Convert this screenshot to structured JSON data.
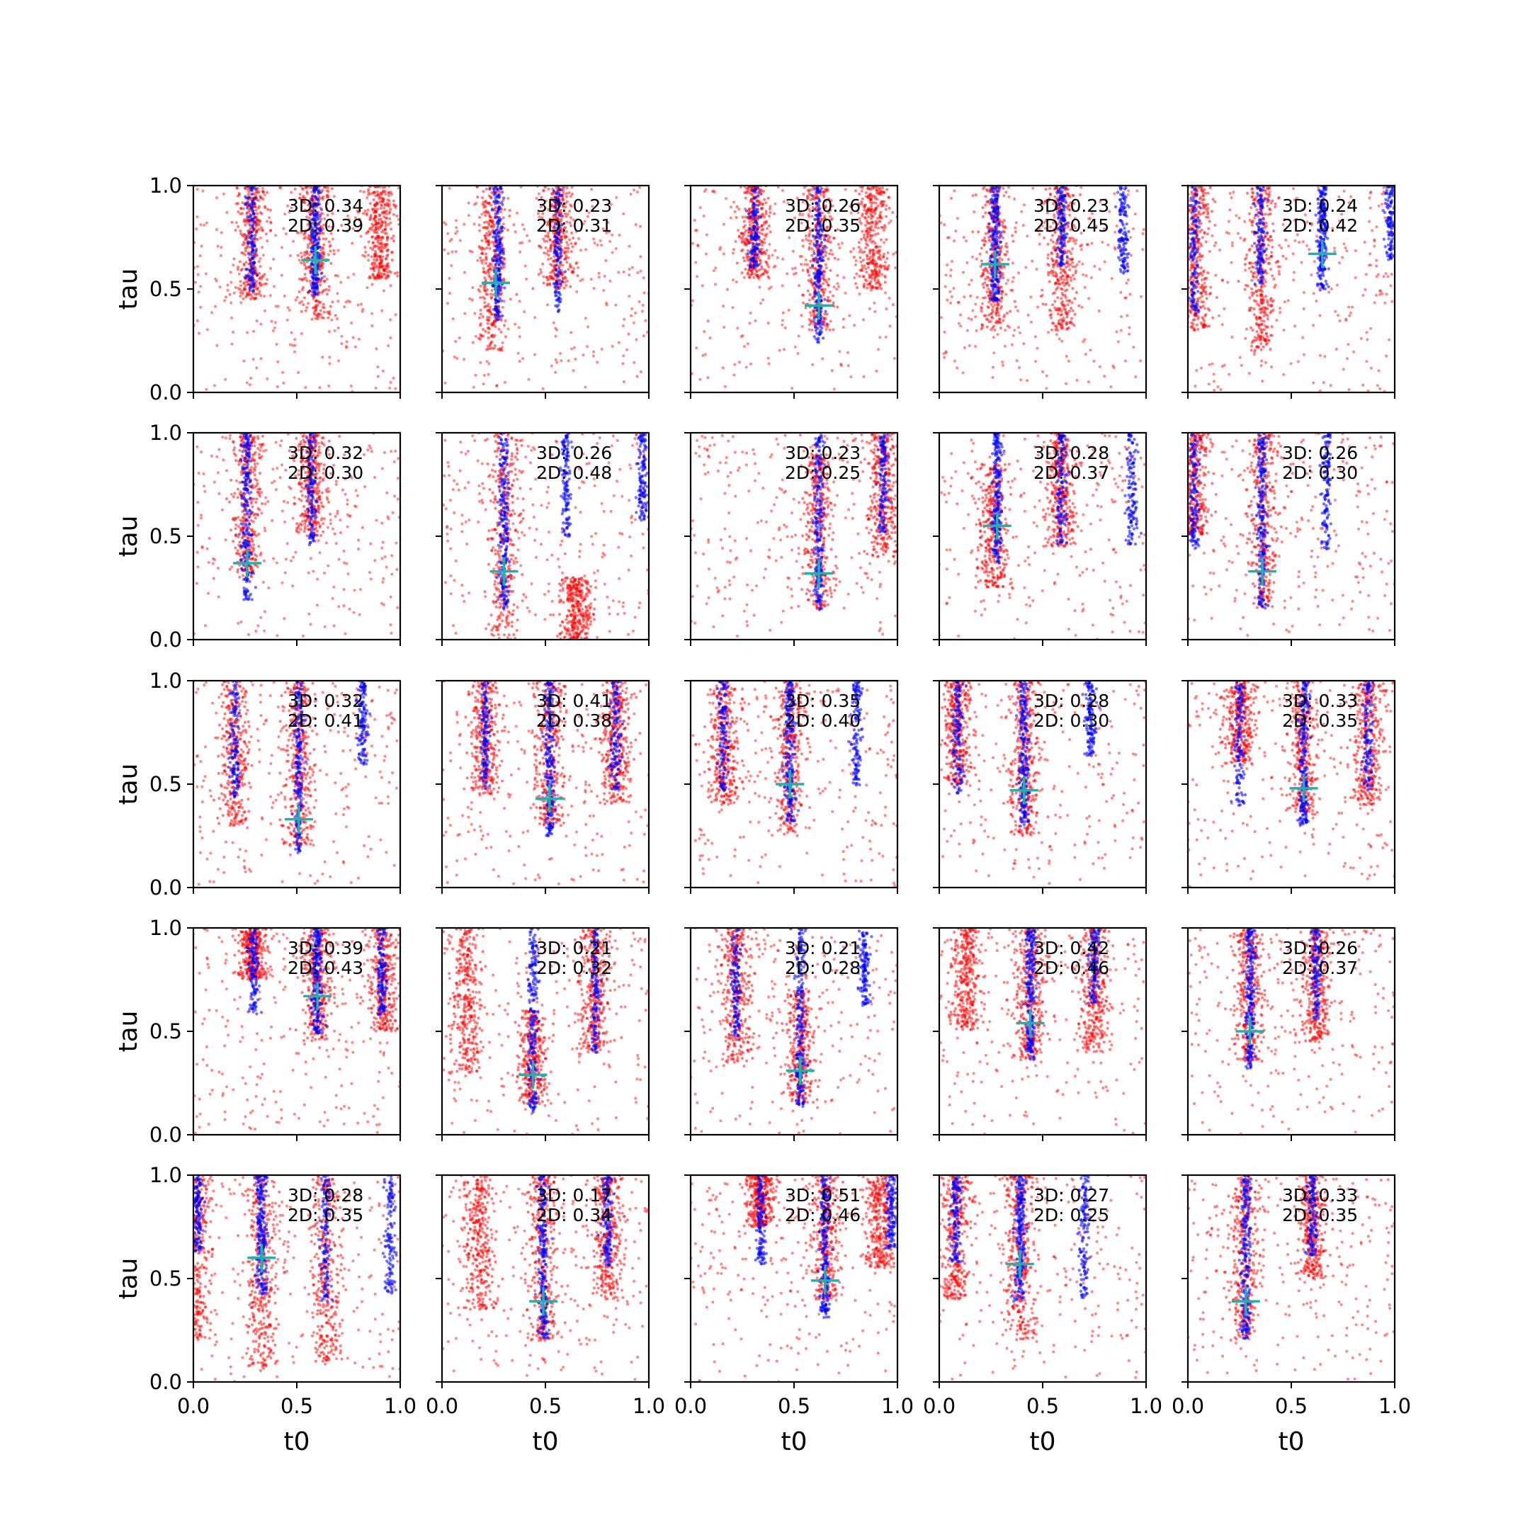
{
  "figure": {
    "rows": 5,
    "cols": 5,
    "xlabel": "t0",
    "ylabel": "tau",
    "xlim": [
      0,
      1
    ],
    "ylim": [
      0,
      1
    ],
    "ticks": [
      0.0,
      0.5,
      1.0
    ],
    "tick_labels": [
      "0.0",
      "0.5",
      "1.0"
    ],
    "colors": {
      "red_points": "#ff0000",
      "blue_points": "#0000ff",
      "marker": "#20b2aa"
    },
    "marker_shape": "plus"
  },
  "chart_data": [
    {
      "type": "scatter",
      "row": 0,
      "col": 0,
      "annotation_3d": "3D: 0.34",
      "annotation_2d": "2D: 0.39",
      "marker": {
        "t0": 0.59,
        "tau": 0.64
      },
      "blue_stripes": [
        0.28,
        0.59
      ],
      "red_clusters": [
        {
          "t0": 0.28,
          "tau_from": 0.45,
          "tau_to": 1.0
        },
        {
          "t0": 0.59,
          "tau_from": 0.35,
          "tau_to": 1.0
        },
        {
          "t0": 0.9,
          "tau_from": 0.55,
          "tau_to": 1.0
        }
      ],
      "xlim": [
        0,
        1
      ],
      "ylim": [
        0,
        1
      ]
    },
    {
      "type": "scatter",
      "row": 0,
      "col": 1,
      "annotation_3d": "3D: 0.23",
      "annotation_2d": "2D: 0.31",
      "marker": {
        "t0": 0.26,
        "tau": 0.53
      },
      "blue_stripes": [
        0.27,
        0.56
      ],
      "red_clusters": [
        {
          "t0": 0.24,
          "tau_from": 0.2,
          "tau_to": 1.0
        },
        {
          "t0": 0.56,
          "tau_from": 0.5,
          "tau_to": 1.0
        }
      ],
      "xlim": [
        0,
        1
      ],
      "ylim": [
        0,
        1
      ]
    },
    {
      "type": "scatter",
      "row": 0,
      "col": 2,
      "annotation_3d": "3D: 0.26",
      "annotation_2d": "2D: 0.35",
      "marker": {
        "t0": 0.62,
        "tau": 0.42
      },
      "blue_stripes": [
        0.31,
        0.62
      ],
      "red_clusters": [
        {
          "t0": 0.31,
          "tau_from": 0.55,
          "tau_to": 1.0
        },
        {
          "t0": 0.62,
          "tau_from": 0.3,
          "tau_to": 1.0
        },
        {
          "t0": 0.88,
          "tau_from": 0.5,
          "tau_to": 1.0
        }
      ],
      "xlim": [
        0,
        1
      ],
      "ylim": [
        0,
        1
      ]
    },
    {
      "type": "scatter",
      "row": 0,
      "col": 3,
      "annotation_3d": "3D: 0.23",
      "annotation_2d": "2D: 0.45",
      "marker": {
        "t0": 0.27,
        "tau": 0.62
      },
      "blue_stripes": [
        0.27,
        0.59,
        0.89
      ],
      "red_clusters": [
        {
          "t0": 0.27,
          "tau_from": 0.3,
          "tau_to": 1.0
        },
        {
          "t0": 0.59,
          "tau_from": 0.3,
          "tau_to": 1.0
        }
      ],
      "xlim": [
        0,
        1
      ],
      "ylim": [
        0,
        1
      ]
    },
    {
      "type": "scatter",
      "row": 0,
      "col": 4,
      "annotation_3d": "3D: 0.24",
      "annotation_2d": "2D: 0.42",
      "marker": {
        "t0": 0.65,
        "tau": 0.67
      },
      "blue_stripes": [
        0.03,
        0.35,
        0.65,
        0.98
      ],
      "red_clusters": [
        {
          "t0": 0.04,
          "tau_from": 0.3,
          "tau_to": 1.0
        },
        {
          "t0": 0.35,
          "tau_from": 0.2,
          "tau_to": 1.0
        }
      ],
      "xlim": [
        0,
        1
      ],
      "ylim": [
        0,
        1
      ]
    },
    {
      "type": "scatter",
      "row": 1,
      "col": 0,
      "annotation_3d": "3D: 0.32",
      "annotation_2d": "2D: 0.30",
      "marker": {
        "t0": 0.26,
        "tau": 0.37
      },
      "blue_stripes": [
        0.26,
        0.57
      ],
      "red_clusters": [
        {
          "t0": 0.26,
          "tau_from": 0.3,
          "tau_to": 1.0
        },
        {
          "t0": 0.57,
          "tau_from": 0.5,
          "tau_to": 1.0
        }
      ],
      "xlim": [
        0,
        1
      ],
      "ylim": [
        0,
        1
      ]
    },
    {
      "type": "scatter",
      "row": 1,
      "col": 1,
      "annotation_3d": "3D: 0.26",
      "annotation_2d": "2D: 0.48",
      "marker": {
        "t0": 0.3,
        "tau": 0.33
      },
      "blue_stripes": [
        0.3,
        0.6,
        0.97
      ],
      "red_clusters": [
        {
          "t0": 0.3,
          "tau_from": 0.0,
          "tau_to": 1.0
        },
        {
          "t0": 0.65,
          "tau_from": 0.0,
          "tau_to": 0.3
        }
      ],
      "xlim": [
        0,
        1
      ],
      "ylim": [
        0,
        1
      ]
    },
    {
      "type": "scatter",
      "row": 1,
      "col": 2,
      "annotation_3d": "3D: 0.23",
      "annotation_2d": "2D: 0.25",
      "marker": {
        "t0": 0.62,
        "tau": 0.32
      },
      "blue_stripes": [
        0.62,
        0.93
      ],
      "red_clusters": [
        {
          "t0": 0.62,
          "tau_from": 0.15,
          "tau_to": 0.9
        },
        {
          "t0": 0.93,
          "tau_from": 0.4,
          "tau_to": 1.0
        }
      ],
      "xlim": [
        0,
        1
      ],
      "ylim": [
        0,
        1
      ]
    },
    {
      "type": "scatter",
      "row": 1,
      "col": 3,
      "annotation_3d": "3D: 0.28",
      "annotation_2d": "2D: 0.37",
      "marker": {
        "t0": 0.28,
        "tau": 0.55
      },
      "blue_stripes": [
        0.28,
        0.59,
        0.93
      ],
      "red_clusters": [
        {
          "t0": 0.26,
          "tau_from": 0.25,
          "tau_to": 0.85
        },
        {
          "t0": 0.59,
          "tau_from": 0.45,
          "tau_to": 1.0
        }
      ],
      "xlim": [
        0,
        1
      ],
      "ylim": [
        0,
        1
      ]
    },
    {
      "type": "scatter",
      "row": 1,
      "col": 4,
      "annotation_3d": "3D: 0.26",
      "annotation_2d": "2D: 0.30",
      "marker": {
        "t0": 0.36,
        "tau": 0.33
      },
      "blue_stripes": [
        0.03,
        0.36,
        0.67
      ],
      "red_clusters": [
        {
          "t0": 0.03,
          "tau_from": 0.5,
          "tau_to": 1.0
        },
        {
          "t0": 0.36,
          "tau_from": 0.15,
          "tau_to": 1.0
        }
      ],
      "xlim": [
        0,
        1
      ],
      "ylim": [
        0,
        1
      ]
    },
    {
      "type": "scatter",
      "row": 2,
      "col": 0,
      "annotation_3d": "3D: 0.32",
      "annotation_2d": "2D: 0.41",
      "marker": {
        "t0": 0.51,
        "tau": 0.33
      },
      "blue_stripes": [
        0.2,
        0.51,
        0.82
      ],
      "red_clusters": [
        {
          "t0": 0.2,
          "tau_from": 0.3,
          "tau_to": 1.0
        },
        {
          "t0": 0.51,
          "tau_from": 0.2,
          "tau_to": 1.0
        }
      ],
      "xlim": [
        0,
        1
      ],
      "ylim": [
        0,
        1
      ]
    },
    {
      "type": "scatter",
      "row": 2,
      "col": 1,
      "annotation_3d": "3D: 0.41",
      "annotation_2d": "2D: 0.38",
      "marker": {
        "t0": 0.52,
        "tau": 0.43
      },
      "blue_stripes": [
        0.21,
        0.52,
        0.84
      ],
      "red_clusters": [
        {
          "t0": 0.21,
          "tau_from": 0.45,
          "tau_to": 1.0
        },
        {
          "t0": 0.52,
          "tau_from": 0.3,
          "tau_to": 1.0
        },
        {
          "t0": 0.84,
          "tau_from": 0.4,
          "tau_to": 1.0
        }
      ],
      "xlim": [
        0,
        1
      ],
      "ylim": [
        0,
        1
      ]
    },
    {
      "type": "scatter",
      "row": 2,
      "col": 2,
      "annotation_3d": "3D: 0.35",
      "annotation_2d": "2D: 0.40",
      "marker": {
        "t0": 0.48,
        "tau": 0.5
      },
      "blue_stripes": [
        0.16,
        0.48,
        0.8
      ],
      "red_clusters": [
        {
          "t0": 0.16,
          "tau_from": 0.4,
          "tau_to": 1.0
        },
        {
          "t0": 0.48,
          "tau_from": 0.25,
          "tau_to": 1.0
        }
      ],
      "xlim": [
        0,
        1
      ],
      "ylim": [
        0,
        1
      ]
    },
    {
      "type": "scatter",
      "row": 2,
      "col": 3,
      "annotation_3d": "3D: 0.28",
      "annotation_2d": "2D: 0.30",
      "marker": {
        "t0": 0.41,
        "tau": 0.47
      },
      "blue_stripes": [
        0.09,
        0.41,
        0.73
      ],
      "red_clusters": [
        {
          "t0": 0.09,
          "tau_from": 0.5,
          "tau_to": 1.0
        },
        {
          "t0": 0.41,
          "tau_from": 0.25,
          "tau_to": 1.0
        }
      ],
      "xlim": [
        0,
        1
      ],
      "ylim": [
        0,
        1
      ]
    },
    {
      "type": "scatter",
      "row": 2,
      "col": 4,
      "annotation_3d": "3D: 0.33",
      "annotation_2d": "2D: 0.35",
      "marker": {
        "t0": 0.56,
        "tau": 0.48
      },
      "blue_stripes": [
        0.25,
        0.56,
        0.87
      ],
      "red_clusters": [
        {
          "t0": 0.25,
          "tau_from": 0.6,
          "tau_to": 1.0
        },
        {
          "t0": 0.56,
          "tau_from": 0.35,
          "tau_to": 1.0
        },
        {
          "t0": 0.87,
          "tau_from": 0.4,
          "tau_to": 1.0
        }
      ],
      "xlim": [
        0,
        1
      ],
      "ylim": [
        0,
        1
      ]
    },
    {
      "type": "scatter",
      "row": 3,
      "col": 0,
      "annotation_3d": "3D: 0.39",
      "annotation_2d": "2D: 0.43",
      "marker": {
        "t0": 0.6,
        "tau": 0.67
      },
      "blue_stripes": [
        0.29,
        0.6,
        0.91
      ],
      "red_clusters": [
        {
          "t0": 0.29,
          "tau_from": 0.75,
          "tau_to": 1.0
        },
        {
          "t0": 0.6,
          "tau_from": 0.45,
          "tau_to": 1.0
        },
        {
          "t0": 0.92,
          "tau_from": 0.5,
          "tau_to": 1.0
        }
      ],
      "xlim": [
        0,
        1
      ],
      "ylim": [
        0,
        1
      ]
    },
    {
      "type": "scatter",
      "row": 3,
      "col": 1,
      "annotation_3d": "3D: 0.21",
      "annotation_2d": "2D: 0.32",
      "marker": {
        "t0": 0.44,
        "tau": 0.29
      },
      "blue_stripes": [
        0.44,
        0.74
      ],
      "red_clusters": [
        {
          "t0": 0.12,
          "tau_from": 0.3,
          "tau_to": 1.0
        },
        {
          "t0": 0.44,
          "tau_from": 0.15,
          "tau_to": 0.6
        },
        {
          "t0": 0.74,
          "tau_from": 0.4,
          "tau_to": 1.0
        }
      ],
      "xlim": [
        0,
        1
      ],
      "ylim": [
        0,
        1
      ]
    },
    {
      "type": "scatter",
      "row": 3,
      "col": 2,
      "annotation_3d": "3D: 0.21",
      "annotation_2d": "2D: 0.28",
      "marker": {
        "t0": 0.53,
        "tau": 0.31
      },
      "blue_stripes": [
        0.22,
        0.53,
        0.84
      ],
      "red_clusters": [
        {
          "t0": 0.22,
          "tau_from": 0.35,
          "tau_to": 1.0
        },
        {
          "t0": 0.53,
          "tau_from": 0.15,
          "tau_to": 0.7
        }
      ],
      "xlim": [
        0,
        1
      ],
      "ylim": [
        0,
        1
      ]
    },
    {
      "type": "scatter",
      "row": 3,
      "col": 3,
      "annotation_3d": "3D: 0.42",
      "annotation_2d": "2D: 0.46",
      "marker": {
        "t0": 0.44,
        "tau": 0.54
      },
      "blue_stripes": [
        0.44,
        0.75
      ],
      "red_clusters": [
        {
          "t0": 0.13,
          "tau_from": 0.5,
          "tau_to": 1.0
        },
        {
          "t0": 0.44,
          "tau_from": 0.35,
          "tau_to": 1.0
        },
        {
          "t0": 0.75,
          "tau_from": 0.4,
          "tau_to": 1.0
        }
      ],
      "xlim": [
        0,
        1
      ],
      "ylim": [
        0,
        1
      ]
    },
    {
      "type": "scatter",
      "row": 3,
      "col": 4,
      "annotation_3d": "3D: 0.26",
      "annotation_2d": "2D: 0.37",
      "marker": {
        "t0": 0.3,
        "tau": 0.5
      },
      "blue_stripes": [
        0.3,
        0.62
      ],
      "red_clusters": [
        {
          "t0": 0.3,
          "tau_from": 0.35,
          "tau_to": 1.0
        },
        {
          "t0": 0.62,
          "tau_from": 0.45,
          "tau_to": 1.0
        }
      ],
      "xlim": [
        0,
        1
      ],
      "ylim": [
        0,
        1
      ]
    },
    {
      "type": "scatter",
      "row": 4,
      "col": 0,
      "annotation_3d": "3D: 0.28",
      "annotation_2d": "2D: 0.35",
      "marker": {
        "t0": 0.33,
        "tau": 0.6
      },
      "blue_stripes": [
        0.02,
        0.33,
        0.64,
        0.95
      ],
      "red_clusters": [
        {
          "t0": 0.02,
          "tau_from": 0.2,
          "tau_to": 1.0
        },
        {
          "t0": 0.33,
          "tau_from": 0.05,
          "tau_to": 1.0
        },
        {
          "t0": 0.64,
          "tau_from": 0.1,
          "tau_to": 1.0
        }
      ],
      "xlim": [
        0,
        1
      ],
      "ylim": [
        0,
        1
      ]
    },
    {
      "type": "scatter",
      "row": 4,
      "col": 1,
      "annotation_3d": "3D: 0.17",
      "annotation_2d": "2D: 0.34",
      "marker": {
        "t0": 0.49,
        "tau": 0.39
      },
      "blue_stripes": [
        0.49,
        0.8
      ],
      "red_clusters": [
        {
          "t0": 0.18,
          "tau_from": 0.35,
          "tau_to": 1.0
        },
        {
          "t0": 0.49,
          "tau_from": 0.2,
          "tau_to": 1.0
        },
        {
          "t0": 0.8,
          "tau_from": 0.4,
          "tau_to": 1.0
        }
      ],
      "xlim": [
        0,
        1
      ],
      "ylim": [
        0,
        1
      ]
    },
    {
      "type": "scatter",
      "row": 4,
      "col": 2,
      "annotation_3d": "3D: 0.51",
      "annotation_2d": "2D: 0.46",
      "marker": {
        "t0": 0.65,
        "tau": 0.49
      },
      "blue_stripes": [
        0.34,
        0.65,
        0.97
      ],
      "red_clusters": [
        {
          "t0": 0.34,
          "tau_from": 0.75,
          "tau_to": 1.0
        },
        {
          "t0": 0.65,
          "tau_from": 0.4,
          "tau_to": 1.0
        },
        {
          "t0": 0.92,
          "tau_from": 0.55,
          "tau_to": 1.0
        }
      ],
      "xlim": [
        0,
        1
      ],
      "ylim": [
        0,
        1
      ]
    },
    {
      "type": "scatter",
      "row": 4,
      "col": 3,
      "annotation_3d": "3D: 0.27",
      "annotation_2d": "2D: 0.25",
      "marker": {
        "t0": 0.39,
        "tau": 0.57
      },
      "blue_stripes": [
        0.08,
        0.39,
        0.7
      ],
      "red_clusters": [
        {
          "t0": 0.08,
          "tau_from": 0.4,
          "tau_to": 1.0
        },
        {
          "t0": 0.39,
          "tau_from": 0.2,
          "tau_to": 1.0
        }
      ],
      "xlim": [
        0,
        1
      ],
      "ylim": [
        0,
        1
      ]
    },
    {
      "type": "scatter",
      "row": 4,
      "col": 4,
      "annotation_3d": "3D: 0.33",
      "annotation_2d": "2D: 0.35",
      "marker": {
        "t0": 0.28,
        "tau": 0.39
      },
      "blue_stripes": [
        0.28,
        0.6
      ],
      "red_clusters": [
        {
          "t0": 0.27,
          "tau_from": 0.2,
          "tau_to": 1.0
        },
        {
          "t0": 0.6,
          "tau_from": 0.5,
          "tau_to": 1.0
        }
      ],
      "xlim": [
        0,
        1
      ],
      "ylim": [
        0,
        1
      ]
    }
  ]
}
